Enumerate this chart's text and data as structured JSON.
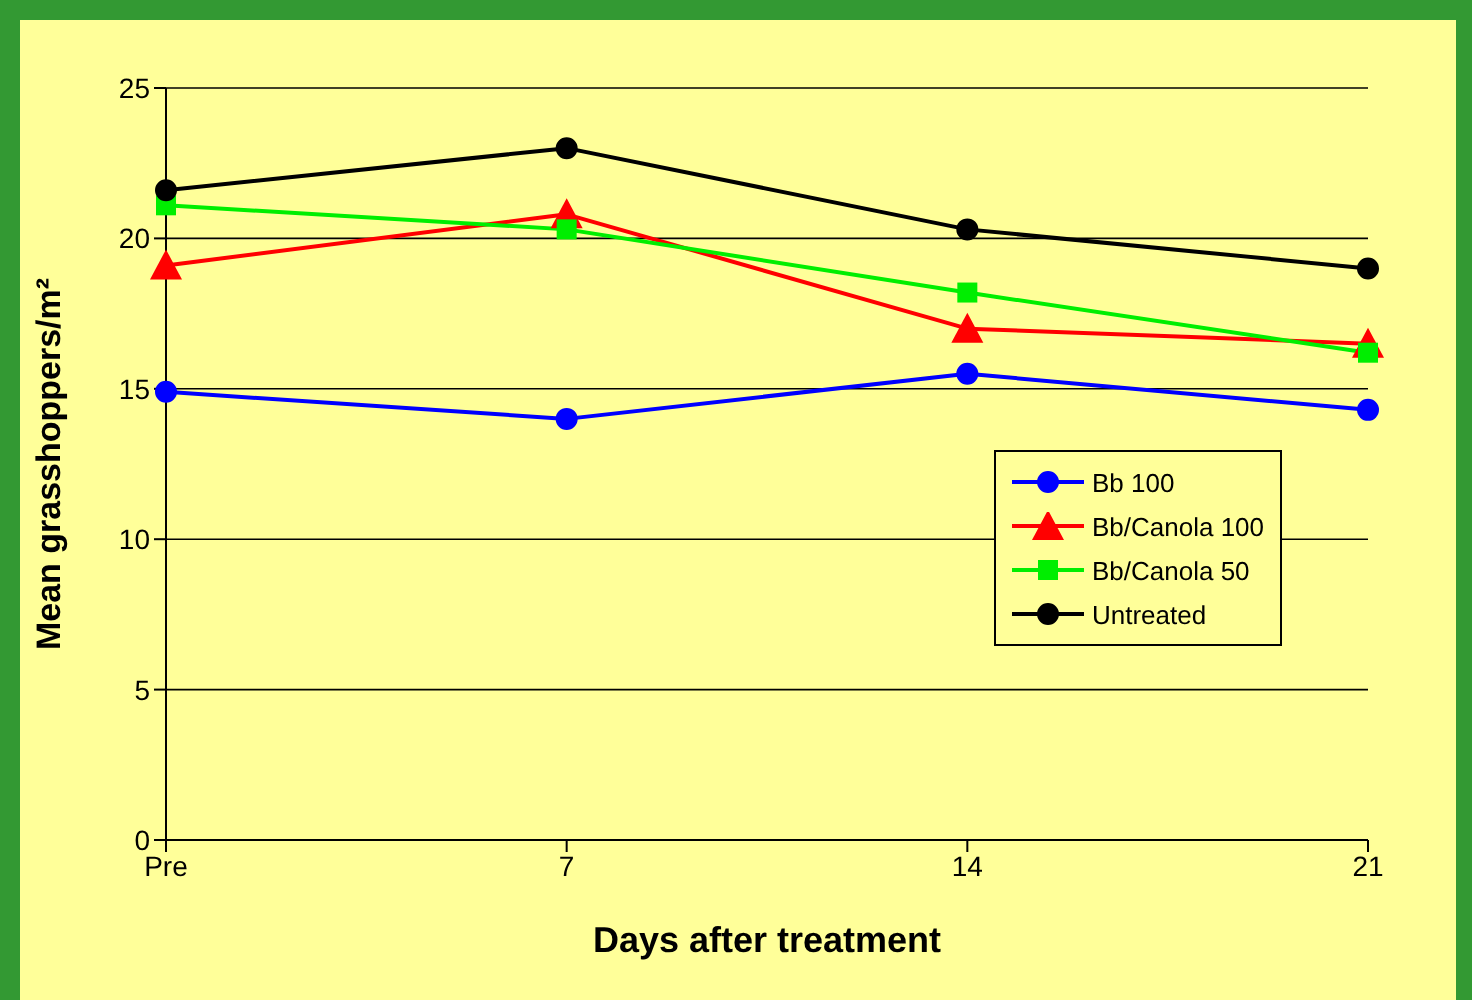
{
  "chart_data": {
    "type": "line",
    "xlabel": "Days after treatment",
    "ylabel": "Mean grasshoppers/m²",
    "categories": [
      "Pre",
      "7",
      "14",
      "21"
    ],
    "series": [
      {
        "name": "Bb 100",
        "color": "#0000ff",
        "marker": "circle",
        "values": [
          14.9,
          14.0,
          15.5,
          14.3
        ]
      },
      {
        "name": "Bb/Canola 100",
        "color": "#ff0000",
        "marker": "triangle",
        "values": [
          19.1,
          20.8,
          17.0,
          16.5
        ]
      },
      {
        "name": "Bb/Canola 50",
        "color": "#00ee00",
        "marker": "square",
        "values": [
          21.1,
          20.3,
          18.2,
          16.2
        ]
      },
      {
        "name": "Untreated",
        "color": "#000000",
        "marker": "circle",
        "values": [
          21.6,
          23.0,
          20.3,
          19.0
        ]
      }
    ],
    "ylim": [
      0,
      25
    ],
    "yticks": [
      0,
      5,
      10,
      15,
      20,
      25
    ],
    "grid": "y",
    "legend": "right",
    "line_style": "solid"
  }
}
